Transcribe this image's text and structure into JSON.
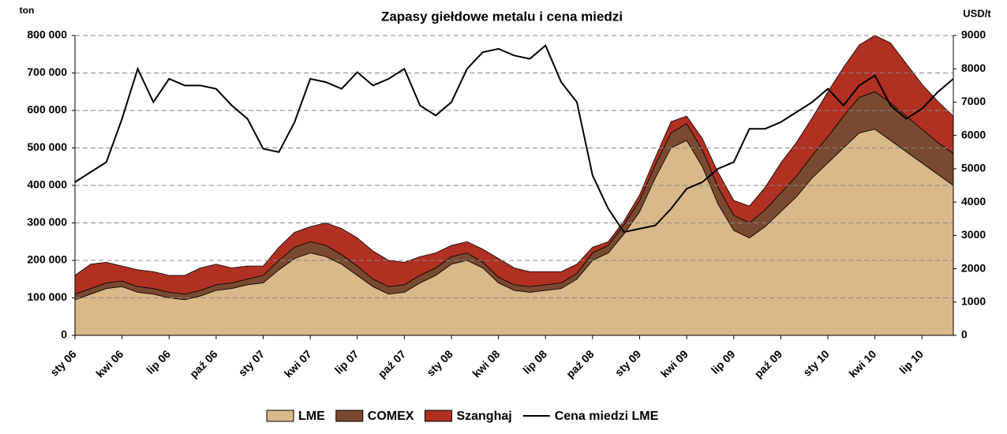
{
  "chart_data": {
    "type": "stacked-area-line",
    "title": "Zapasy giełdowe metalu i cena miedzi",
    "y_label": "ton",
    "y2_label": "USD/t",
    "categories": [
      "sty 06",
      null,
      null,
      "kwi 06",
      null,
      null,
      "lip 06",
      null,
      null,
      "paź 06",
      null,
      null,
      "sty 07",
      null,
      null,
      "kwi 07",
      null,
      null,
      "lip 07",
      null,
      null,
      "paź 07",
      null,
      null,
      "sty 08",
      null,
      null,
      "kwi 08",
      null,
      null,
      "lip 08",
      null,
      null,
      "paź 08",
      null,
      null,
      "sty 09",
      null,
      null,
      "kwi 09",
      null,
      null,
      "lip 09",
      null,
      null,
      "paź 09",
      null,
      null,
      "sty 10",
      null,
      null,
      "kwi 10",
      null,
      null,
      "lip 10",
      null,
      null
    ],
    "series": [
      {
        "name": "LME",
        "color": "#d9b889",
        "values": [
          95000,
          110000,
          125000,
          130000,
          115000,
          110000,
          100000,
          95000,
          105000,
          120000,
          125000,
          135000,
          140000,
          175000,
          205000,
          220000,
          210000,
          190000,
          160000,
          130000,
          110000,
          115000,
          140000,
          160000,
          190000,
          200000,
          180000,
          140000,
          120000,
          115000,
          120000,
          125000,
          150000,
          200000,
          220000,
          270000,
          330000,
          420000,
          500000,
          520000,
          450000,
          350000,
          280000,
          260000,
          290000,
          330000,
          370000,
          420000,
          460000,
          500000,
          540000,
          550000,
          520000,
          490000,
          460000,
          430000,
          400000
        ]
      },
      {
        "name": "COMEX",
        "color": "#7a4a30",
        "values": [
          15000,
          15000,
          15000,
          15000,
          15000,
          15000,
          15000,
          15000,
          15000,
          15000,
          15000,
          15000,
          20000,
          25000,
          30000,
          30000,
          30000,
          25000,
          25000,
          20000,
          20000,
          20000,
          20000,
          20000,
          20000,
          20000,
          15000,
          15000,
          15000,
          15000,
          15000,
          15000,
          15000,
          20000,
          20000,
          25000,
          30000,
          35000,
          40000,
          45000,
          45000,
          45000,
          40000,
          40000,
          45000,
          50000,
          55000,
          60000,
          70000,
          85000,
          95000,
          100000,
          100000,
          95000,
          90000,
          85000,
          85000
        ]
      },
      {
        "name": "Szanghaj",
        "color": "#b03022",
        "values": [
          50000,
          65000,
          55000,
          40000,
          45000,
          45000,
          45000,
          50000,
          60000,
          55000,
          40000,
          35000,
          25000,
          35000,
          40000,
          40000,
          60000,
          70000,
          75000,
          75000,
          70000,
          60000,
          50000,
          40000,
          30000,
          30000,
          35000,
          50000,
          45000,
          40000,
          35000,
          30000,
          25000,
          15000,
          10000,
          10000,
          15000,
          20000,
          30000,
          20000,
          30000,
          40000,
          40000,
          45000,
          60000,
          80000,
          90000,
          100000,
          120000,
          130000,
          140000,
          150000,
          160000,
          140000,
          120000,
          110000,
          100000
        ]
      },
      {
        "name": "Cena miedzi LME",
        "color": "#000000",
        "axis": "y2",
        "values": [
          4600,
          4900,
          5200,
          6500,
          8000,
          7000,
          7700,
          7500,
          7500,
          7400,
          6900,
          6500,
          5600,
          5500,
          6400,
          7700,
          7600,
          7400,
          7900,
          7500,
          7700,
          8000,
          6900,
          6600,
          7000,
          8000,
          8500,
          8600,
          8400,
          8300,
          8700,
          7600,
          7000,
          4800,
          3800,
          3100,
          3200,
          3300,
          3800,
          4400,
          4600,
          5000,
          5200,
          6200,
          6200,
          6400,
          6700,
          7000,
          7400,
          6900,
          7500,
          7800,
          6900,
          6500,
          6800,
          7300,
          7700
        ]
      }
    ],
    "ylim": [
      0,
      800000
    ],
    "yticks": [
      0,
      {
        "value": 100000,
        "label": "100 000"
      },
      {
        "value": 200000,
        "label": "200 000"
      },
      {
        "value": 300000,
        "label": "300 000"
      },
      {
        "value": 400000,
        "label": "400 000"
      },
      {
        "value": 500000,
        "label": "500 000"
      },
      {
        "value": 600000,
        "label": "600 000"
      },
      {
        "value": 700000,
        "label": "700 000"
      },
      {
        "value": 800000,
        "label": "800 000"
      }
    ],
    "y2lim": [
      0,
      9000
    ],
    "y2ticks": [
      0,
      1000,
      2000,
      3000,
      4000,
      5000,
      6000,
      7000,
      8000,
      9000
    ],
    "grid": true,
    "legend": "bottom"
  }
}
